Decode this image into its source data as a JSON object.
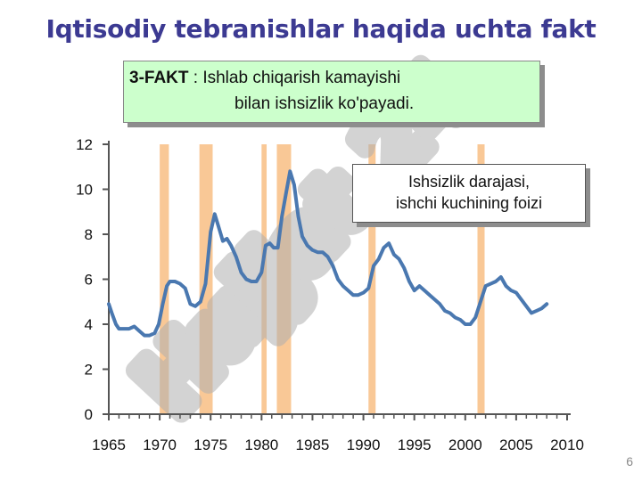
{
  "slide": {
    "title": "Iqtisodiy tebranishlar haqida uchta fakt",
    "fact_label": "3-FAKT",
    "fact_text_line1": " : Ishlab chiqarish kamayishi",
    "fact_text_line2": "bilan ishsizlik ko'payadi.",
    "slide_number": "6",
    "watermark": "Hujjat 24"
  },
  "colors": {
    "title": "#3c3a92",
    "line": "#4a78b0",
    "recession": "#f9c896",
    "fact_box_bg": "#ccffcc"
  },
  "chart_data": {
    "type": "line",
    "title": "",
    "xlabel": "",
    "ylabel": "",
    "xlim": [
      1965,
      2010
    ],
    "ylim": [
      0,
      12
    ],
    "x_ticks": [
      1965,
      1970,
      1975,
      1980,
      1985,
      1990,
      1995,
      2000,
      2005,
      2010
    ],
    "y_ticks": [
      0,
      2,
      4,
      6,
      8,
      10,
      12
    ],
    "grid": false,
    "legend": {
      "placement": "top-right",
      "text_line1": "Ishsizlik darajasi,",
      "text_line2": "ishchi kuchining foizi"
    },
    "recessions": [
      [
        1970.0,
        1970.9
      ],
      [
        1973.9,
        1975.2
      ],
      [
        1980.0,
        1980.5
      ],
      [
        1981.5,
        1982.9
      ],
      [
        1990.5,
        1991.2
      ],
      [
        2001.2,
        2001.9
      ]
    ],
    "series": [
      {
        "x": [
          1965.0,
          1965.3,
          1965.7,
          1966.0,
          1966.5,
          1967.0,
          1967.5,
          1968.0,
          1968.5,
          1969.0,
          1969.5,
          1969.9,
          1970.3,
          1970.7,
          1971.0,
          1971.5,
          1972.0,
          1972.5,
          1973.0,
          1973.5,
          1974.0,
          1974.5,
          1975.0,
          1975.4,
          1975.8,
          1976.2,
          1976.6,
          1977.0,
          1977.5,
          1978.0,
          1978.5,
          1979.0,
          1979.5,
          1980.0,
          1980.4,
          1980.8,
          1981.2,
          1981.6,
          1982.0,
          1982.4,
          1982.8,
          1983.2,
          1983.6,
          1984.0,
          1984.5,
          1985.0,
          1985.5,
          1986.0,
          1986.5,
          1987.0,
          1987.5,
          1988.0,
          1988.5,
          1989.0,
          1989.5,
          1990.0,
          1990.5,
          1991.0,
          1991.5,
          1992.0,
          1992.5,
          1993.0,
          1993.5,
          1994.0,
          1994.5,
          1995.0,
          1995.5,
          1996.0,
          1996.5,
          1997.0,
          1997.5,
          1998.0,
          1998.5,
          1999.0,
          1999.5,
          2000.0,
          2000.5,
          2001.0,
          2001.5,
          2002.0,
          2002.5,
          2003.0,
          2003.5,
          2004.0,
          2004.5,
          2005.0,
          2005.5,
          2006.0,
          2006.5,
          2007.0,
          2007.5,
          2008.0
        ],
        "values": [
          4.9,
          4.5,
          4.0,
          3.8,
          3.8,
          3.8,
          3.9,
          3.7,
          3.5,
          3.5,
          3.6,
          4.0,
          4.9,
          5.7,
          5.9,
          5.9,
          5.8,
          5.6,
          4.9,
          4.8,
          5.0,
          5.8,
          8.1,
          8.9,
          8.3,
          7.7,
          7.8,
          7.5,
          7.0,
          6.3,
          6.0,
          5.9,
          5.9,
          6.3,
          7.5,
          7.6,
          7.4,
          7.4,
          8.8,
          9.8,
          10.8,
          10.2,
          8.8,
          7.9,
          7.5,
          7.3,
          7.2,
          7.2,
          7.0,
          6.6,
          6.0,
          5.7,
          5.5,
          5.3,
          5.3,
          5.4,
          5.6,
          6.6,
          6.9,
          7.4,
          7.6,
          7.1,
          6.9,
          6.5,
          5.9,
          5.5,
          5.7,
          5.5,
          5.3,
          5.1,
          4.9,
          4.6,
          4.5,
          4.3,
          4.2,
          4.0,
          4.0,
          4.3,
          5.0,
          5.7,
          5.8,
          5.9,
          6.1,
          5.7,
          5.5,
          5.4,
          5.1,
          4.8,
          4.5,
          4.6,
          4.7,
          4.9
        ]
      }
    ]
  }
}
